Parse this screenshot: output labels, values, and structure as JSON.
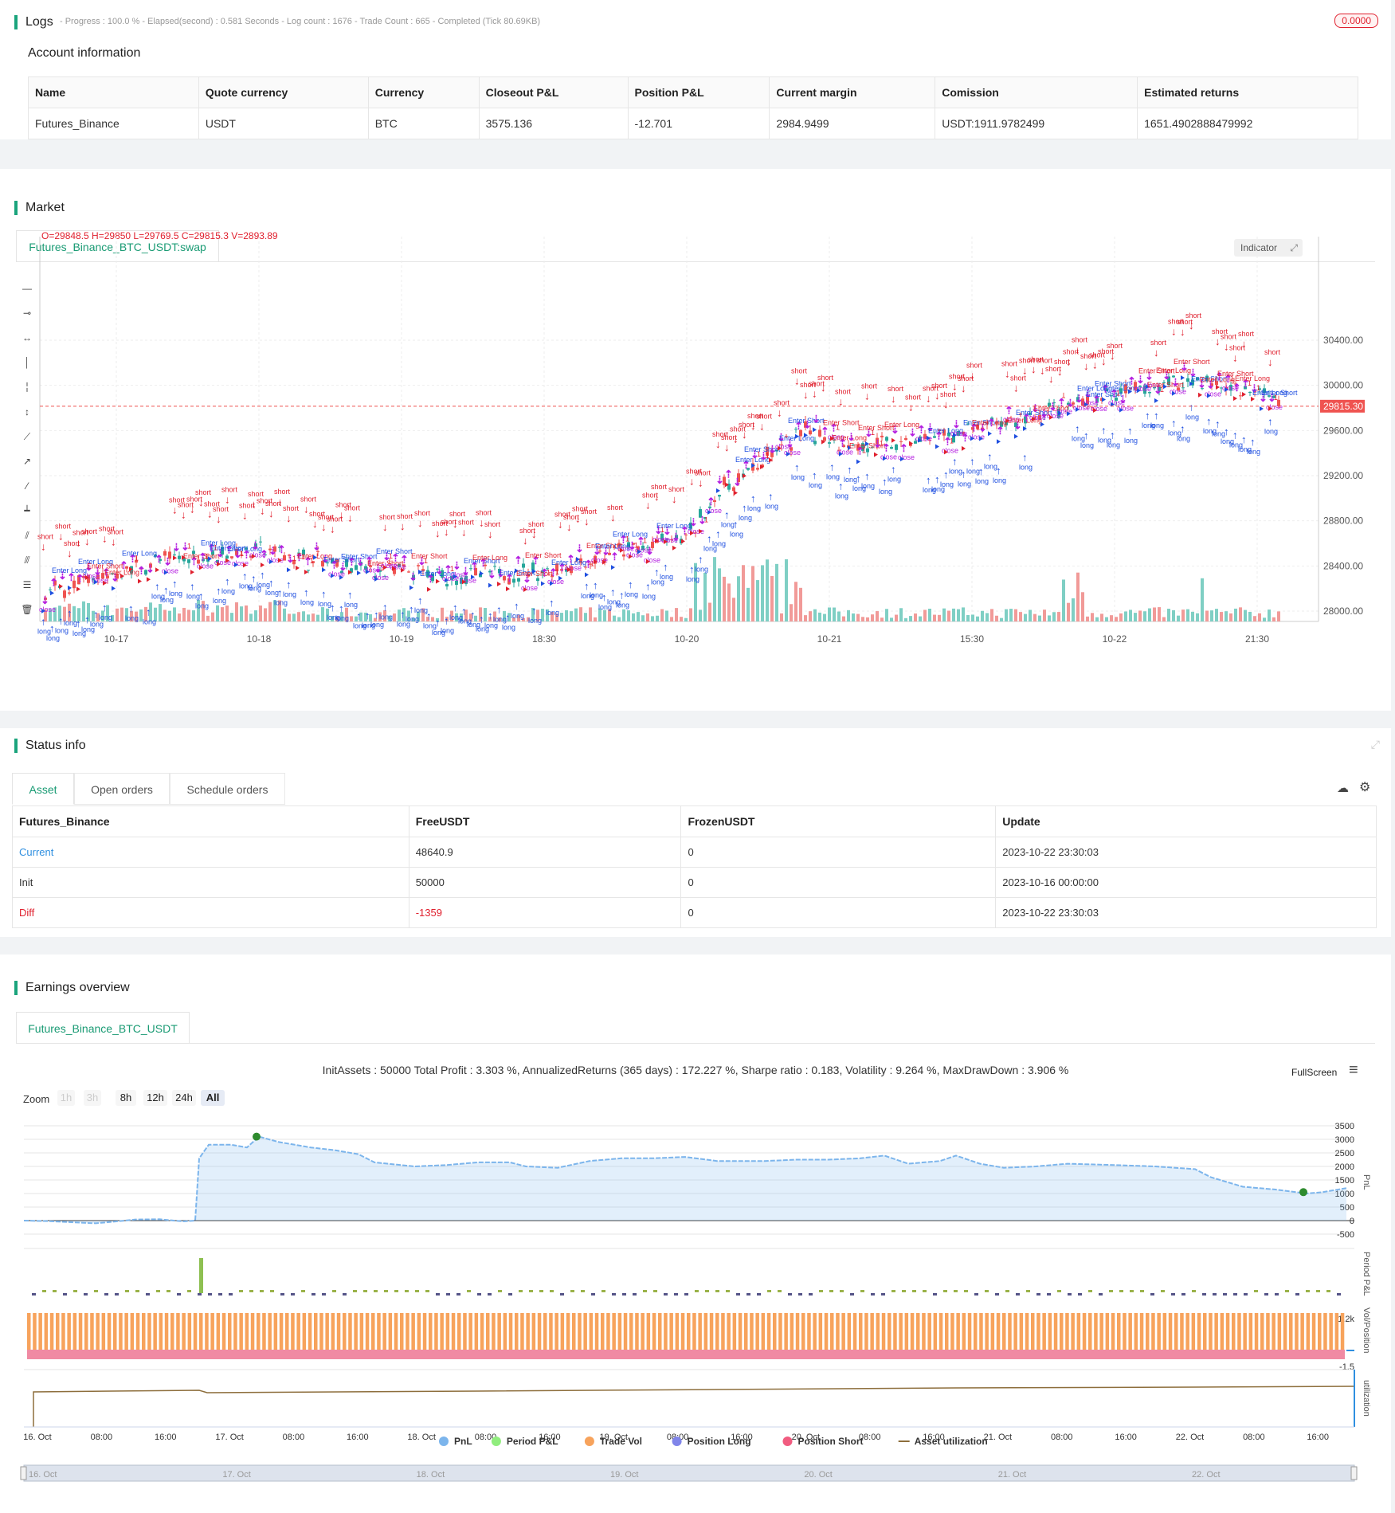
{
  "logs": {
    "title": "Logs",
    "summary": "- Progress : 100.0 % - Elapsed(second) : 0.581 Seconds - Log count : 1676 - Trade Count : 665 - Completed (Tick 80.69KB)",
    "badge": "0.0000"
  },
  "account": {
    "title": "Account information",
    "headers": [
      "Name",
      "Quote currency",
      "Currency",
      "Closeout P&L",
      "Position P&L",
      "Current margin",
      "Comission",
      "Estimated returns"
    ],
    "row": [
      "Futures_Binance",
      "USDT",
      "BTC",
      "3575.136",
      "-12.701",
      "2984.9499",
      "USDT:1911.9782499",
      "1651.4902888479992"
    ]
  },
  "market": {
    "title": "Market",
    "tab": "Futures_Binance_BTC_USDT:swap",
    "ohlc": "O=29848.5 H=29850 L=29769.5 C=29815.3 V=2893.89",
    "indicator_button": "Indicator",
    "last_price": "29815.30",
    "y_ticks": [
      "30400.00",
      "30000.00",
      "29600.00",
      "29200.00",
      "28800.00",
      "28400.00",
      "28000.00"
    ],
    "x_ticks": [
      "10-17",
      "10-18",
      "10-19",
      "18:30",
      "10-20",
      "10-21",
      "15:30",
      "10-22",
      "21:30"
    ],
    "marker_labels": {
      "short": "short",
      "long": "long",
      "close": "close",
      "enter_short": "Enter Short",
      "enter_long": "Enter Long",
      "one": "1"
    },
    "colors": {
      "up": "#26a69a",
      "down": "#ef5350",
      "short": "#e0202e",
      "long": "#1f4fe0",
      "close": "#b41ee0"
    }
  },
  "status": {
    "title": "Status info",
    "tabs": [
      "Asset",
      "Open orders",
      "Schedule orders"
    ],
    "headers": [
      "Futures_Binance",
      "FreeUSDT",
      "FrozenUSDT",
      "Update"
    ],
    "rows": [
      [
        "Current",
        "48640.9",
        "0",
        "2023-10-22 23:30:03"
      ],
      [
        "Init",
        "50000",
        "0",
        "2023-10-16 00:00:00"
      ],
      [
        "Diff",
        "-1359",
        "0",
        "2023-10-22 23:30:03"
      ]
    ]
  },
  "earnings": {
    "title": "Earnings overview",
    "tab": "Futures_Binance_BTC_USDT",
    "summary": "InitAssets : 50000 Total Profit : 3.303 %, AnnualizedReturns (365 days) : 172.227 %, Sharpe ratio : 0.183, Volatility : 9.264 %, MaxDrawDown : 3.906 %",
    "fullscreen": "FullScreen",
    "zoom_label": "Zoom",
    "zoom_buttons": [
      "1h",
      "3h",
      "8h",
      "12h",
      "24h",
      "All"
    ],
    "pnl_ticks": [
      "3500",
      "3000",
      "2500",
      "2000",
      "1500",
      "1000",
      "500",
      "0",
      "-500"
    ],
    "period_tick": "-1.2k",
    "vol_tick": "-1.5",
    "axis_labels": [
      "PnL",
      "Period P&L",
      "Vol/Position",
      "utilization"
    ],
    "x_ticks": [
      "16. Oct",
      "08:00",
      "16:00",
      "17. Oct",
      "08:00",
      "16:00",
      "18. Oct",
      "08:00",
      "16:00",
      "19. Oct",
      "08:00",
      "16:00",
      "20. Oct",
      "08:00",
      "16:00",
      "21. Oct",
      "08:00",
      "16:00",
      "22. Oct",
      "08:00",
      "16:00"
    ],
    "nav_ticks": [
      "16. Oct",
      "17. Oct",
      "18. Oct",
      "19. Oct",
      "20. Oct",
      "21. Oct",
      "22. Oct"
    ],
    "legend": [
      {
        "label": "PnL",
        "color": "#7cb5ec"
      },
      {
        "label": "Period P&L",
        "color": "#90ed7d"
      },
      {
        "label": "Trade Vol",
        "color": "#f7a35c"
      },
      {
        "label": "Position Long",
        "color": "#8085e9"
      },
      {
        "label": "Position Short",
        "color": "#f15c80"
      },
      {
        "label": "Asset utilization",
        "color": "#8d6e3c"
      }
    ]
  }
}
